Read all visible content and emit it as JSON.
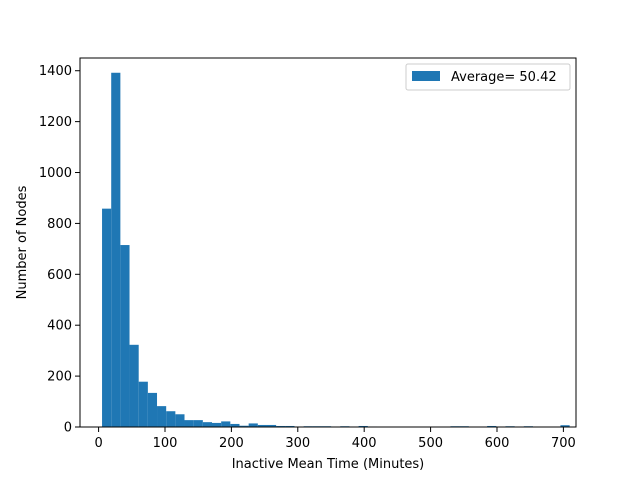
{
  "chart_data": {
    "type": "bar",
    "title": "",
    "xlabel": "Inactive Mean Time (Minutes)",
    "ylabel": "Number of Nodes",
    "xlim": [
      -28,
      719
    ],
    "ylim": [
      0,
      1450
    ],
    "xticks": [
      0,
      100,
      200,
      300,
      400,
      500,
      600,
      700
    ],
    "yticks": [
      0,
      200,
      400,
      600,
      800,
      1000,
      1200,
      1400
    ],
    "grid": false,
    "legend": {
      "position": "top-right",
      "entries": [
        "Average= 50.42"
      ]
    },
    "series": [
      {
        "name": "Average= 50.42",
        "color": "#1f77b4",
        "bin_width": 13.8,
        "bins": [
          {
            "x": 5.2,
            "count": 858
          },
          {
            "x": 19.0,
            "count": 1392
          },
          {
            "x": 32.8,
            "count": 715
          },
          {
            "x": 46.6,
            "count": 323
          },
          {
            "x": 60.4,
            "count": 178
          },
          {
            "x": 74.2,
            "count": 134
          },
          {
            "x": 88.0,
            "count": 82
          },
          {
            "x": 101.8,
            "count": 62
          },
          {
            "x": 115.6,
            "count": 50
          },
          {
            "x": 129.4,
            "count": 27
          },
          {
            "x": 143.2,
            "count": 27
          },
          {
            "x": 157.0,
            "count": 19
          },
          {
            "x": 170.8,
            "count": 16
          },
          {
            "x": 184.6,
            "count": 22
          },
          {
            "x": 198.4,
            "count": 12
          },
          {
            "x": 212.2,
            "count": 5
          },
          {
            "x": 226.0,
            "count": 14
          },
          {
            "x": 239.8,
            "count": 8
          },
          {
            "x": 253.6,
            "count": 8
          },
          {
            "x": 267.4,
            "count": 4
          },
          {
            "x": 281.2,
            "count": 4
          },
          {
            "x": 295.0,
            "count": 2
          },
          {
            "x": 308.8,
            "count": 3
          },
          {
            "x": 322.6,
            "count": 3
          },
          {
            "x": 336.4,
            "count": 3
          },
          {
            "x": 350.2,
            "count": 2
          },
          {
            "x": 364.0,
            "count": 3
          },
          {
            "x": 377.8,
            "count": 2
          },
          {
            "x": 391.6,
            "count": 4
          },
          {
            "x": 405.4,
            "count": 2
          },
          {
            "x": 530.0,
            "count": 3
          },
          {
            "x": 543.8,
            "count": 3
          },
          {
            "x": 585.2,
            "count": 4
          },
          {
            "x": 612.8,
            "count": 3
          },
          {
            "x": 640.4,
            "count": 3
          },
          {
            "x": 695.6,
            "count": 7
          }
        ]
      }
    ]
  }
}
